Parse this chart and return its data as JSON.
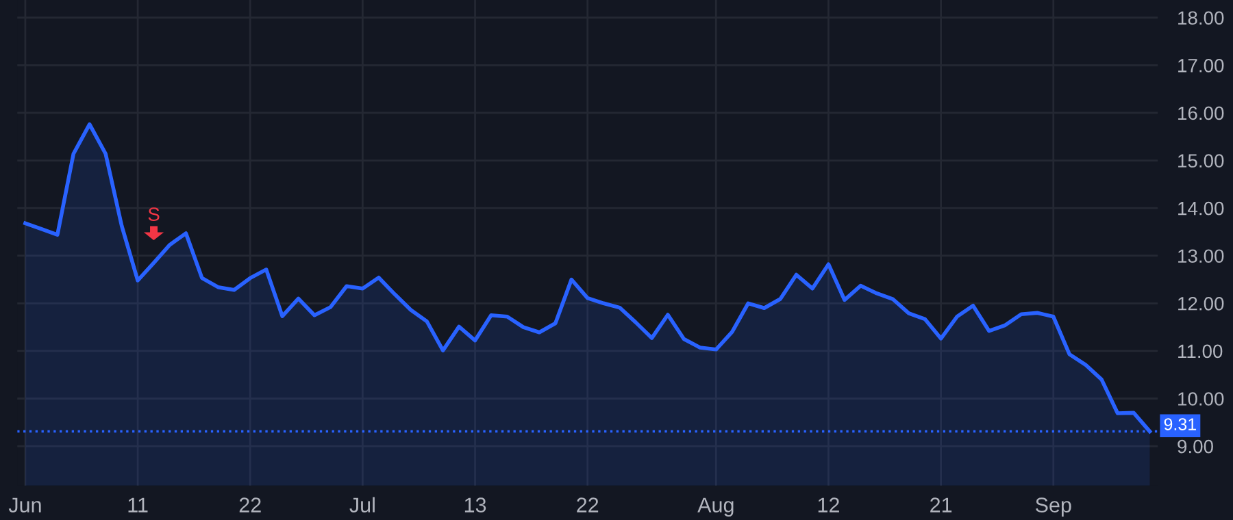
{
  "chart_data": {
    "type": "area",
    "categories": [
      "Jun",
      null,
      null,
      null,
      null,
      null,
      null,
      "11",
      null,
      null,
      null,
      null,
      null,
      null,
      "22",
      null,
      null,
      null,
      null,
      null,
      null,
      "Jul",
      null,
      null,
      null,
      null,
      null,
      null,
      "13",
      null,
      null,
      null,
      null,
      null,
      null,
      "22",
      null,
      null,
      null,
      null,
      null,
      null,
      null,
      "Aug",
      null,
      null,
      null,
      null,
      null,
      null,
      "12",
      null,
      null,
      null,
      null,
      null,
      null,
      "21",
      null,
      null,
      null,
      null,
      null,
      null,
      "Sep",
      null,
      null,
      null,
      null,
      null,
      null
    ],
    "series": [
      {
        "color": "#2962ff",
        "values": [
          13.68,
          13.56,
          13.44,
          15.14,
          15.76,
          15.14,
          13.63,
          12.48,
          12.85,
          13.23,
          13.47,
          12.53,
          12.34,
          12.28,
          12.53,
          12.71,
          11.73,
          12.1,
          11.75,
          11.92,
          12.36,
          12.31,
          12.54,
          12.19,
          11.86,
          11.62,
          11.01,
          11.51,
          11.22,
          11.75,
          11.72,
          11.5,
          11.39,
          11.58,
          12.5,
          12.11,
          12.0,
          11.91,
          11.6,
          11.27,
          11.76,
          11.25,
          11.07,
          11.03,
          11.4,
          12.0,
          11.9,
          12.09,
          12.6,
          12.31,
          12.82,
          12.07,
          12.37,
          12.21,
          12.09,
          11.79,
          11.67,
          11.26,
          11.72,
          11.95,
          11.42,
          11.54,
          11.77,
          11.8,
          11.72,
          10.93,
          10.71,
          10.4,
          9.69,
          9.7,
          9.31
        ]
      }
    ],
    "ylim": [
      8.17,
      18.37
    ],
    "yticks": [
      {
        "value": 9,
        "label": "9.00"
      },
      {
        "value": 10,
        "label": "10.00"
      },
      {
        "value": 11,
        "label": "11.00"
      },
      {
        "value": 12,
        "label": "12.00"
      },
      {
        "value": 13,
        "label": "13.00"
      },
      {
        "value": 14,
        "label": "14.00"
      },
      {
        "value": 15,
        "label": "15.00"
      },
      {
        "value": 16,
        "label": "16.00"
      },
      {
        "value": 17,
        "label": "17.00"
      },
      {
        "value": 18,
        "label": "18.00"
      }
    ],
    "grid": true,
    "marker": "none",
    "line_style": "solid",
    "ref_lines": [
      {
        "axis": "y",
        "value": 9.31,
        "label": "9.31",
        "color": "#2962ff",
        "line_style": "dotted"
      }
    ],
    "annotations": [
      "S"
    ]
  }
}
